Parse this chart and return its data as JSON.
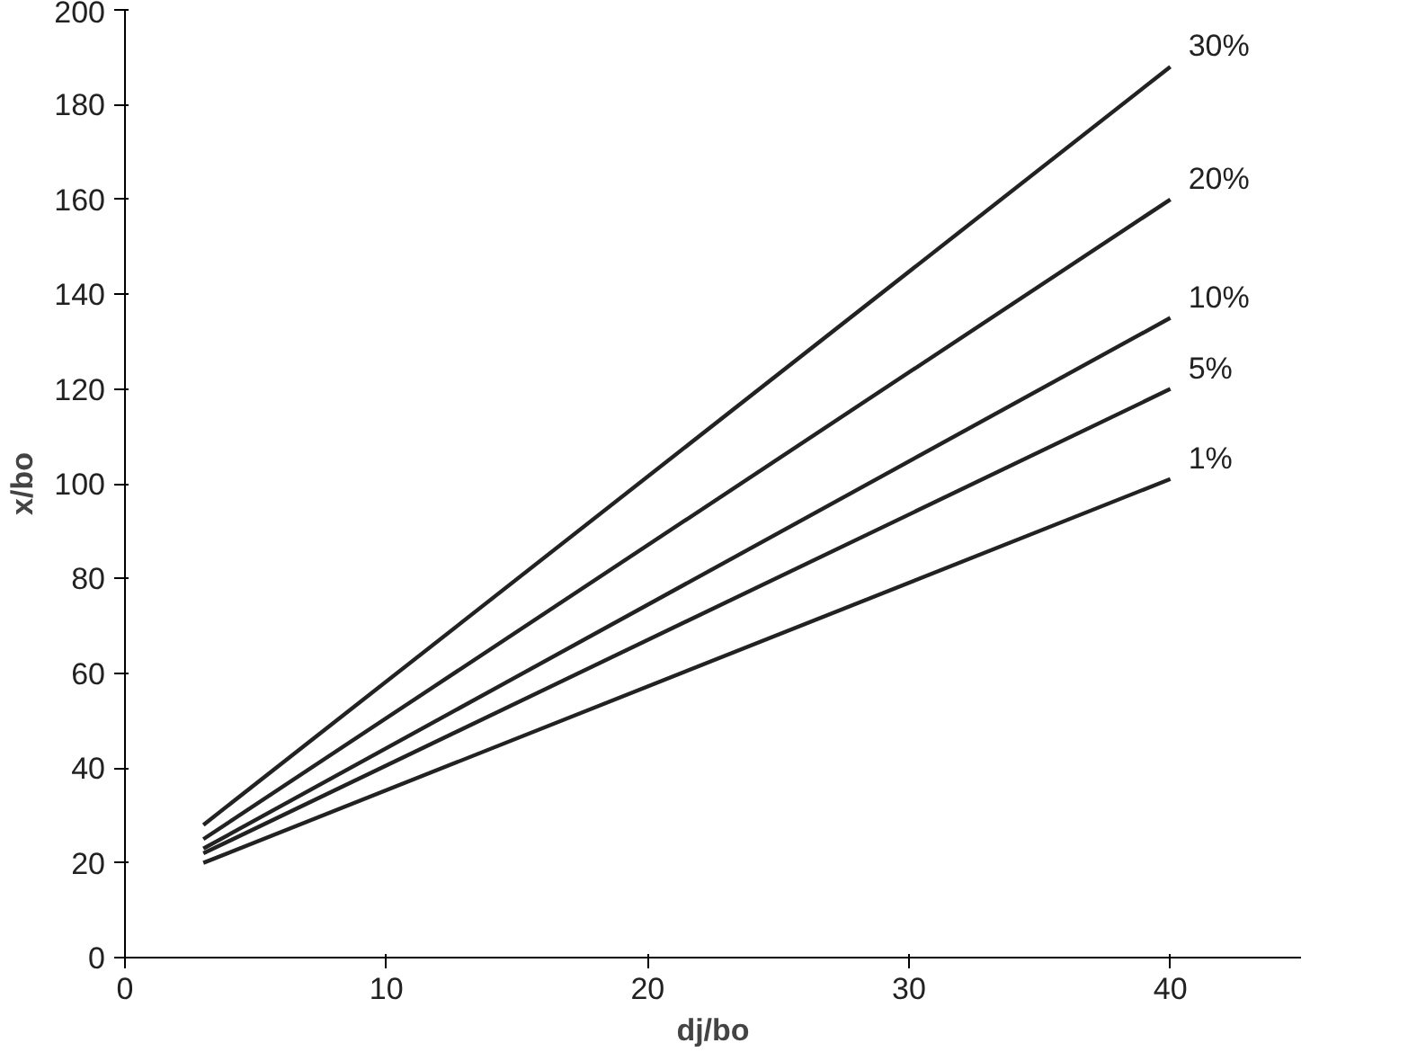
{
  "chart_data": {
    "type": "line",
    "xlabel": "dj/bo",
    "ylabel": "x/bo",
    "x": [
      3,
      40
    ],
    "series": [
      {
        "name": "30%",
        "color": "#222222",
        "values": [
          28,
          188
        ]
      },
      {
        "name": "20%",
        "color": "#222222",
        "values": [
          25,
          160
        ]
      },
      {
        "name": "10%",
        "color": "#222222",
        "values": [
          23,
          135
        ]
      },
      {
        "name": "5%",
        "color": "#222222",
        "values": [
          22,
          120
        ]
      },
      {
        "name": "1%",
        "color": "#222222",
        "values": [
          20,
          101
        ]
      }
    ],
    "xlim": [
      0,
      45
    ],
    "ylim": [
      0,
      200
    ],
    "xticks": [
      0,
      10,
      20,
      30,
      40
    ],
    "yticks": [
      0,
      20,
      40,
      60,
      80,
      100,
      120,
      140,
      160,
      180,
      200
    ],
    "grid": false,
    "legend": false,
    "marker": "none",
    "line_style": "solid"
  }
}
